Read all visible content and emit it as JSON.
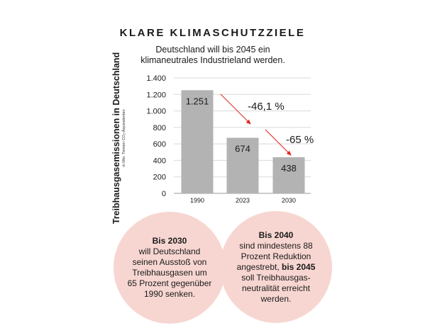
{
  "title": "KLARE KLIMASCHUTZZIELE",
  "subtitle": "Deutschland will bis 2045 ein klimaneutrales Industrieland werden.",
  "chart_data": {
    "type": "bar",
    "categories": [
      "1990",
      "2023",
      "2030"
    ],
    "values": [
      1251,
      674,
      438
    ],
    "value_labels": [
      "1.251",
      "674",
      "438"
    ],
    "ylabel": "Treibhausgasemissionen in Deutschland",
    "ylabel_unit": "in Mio. Tonnen CO₂-Äquivalenten",
    "ylim": [
      0,
      1400
    ],
    "yticks": [
      0,
      200,
      400,
      600,
      800,
      1000,
      1200,
      1400
    ],
    "ytick_labels": [
      "0",
      "200",
      "400",
      "600",
      "800",
      "1.000",
      "1.200",
      "1.400"
    ],
    "grid": true,
    "annotations": [
      {
        "text": "-46,1 %",
        "from": "1990",
        "to": "2023"
      },
      {
        "text": "-65 %",
        "from": "2023",
        "to": "2030"
      }
    ],
    "bar_color": "#b3b3b3",
    "arrow_color": "#e2231a"
  },
  "circles": {
    "left": {
      "bold_lead": "Bis 2030",
      "text": "will Deutschland seinen Ausstoß von Treibhausgasen um 65 Prozent gegenüber 1990 senken."
    },
    "right": {
      "bold_lead": "Bis 2040",
      "text_a": "sind mindestens 88 Prozent Reduktion angestrebt, ",
      "bold_mid": "bis 2045",
      "text_b": " soll Treibhausgas-neutralität erreicht werden."
    },
    "color": "#f7d6d1"
  }
}
